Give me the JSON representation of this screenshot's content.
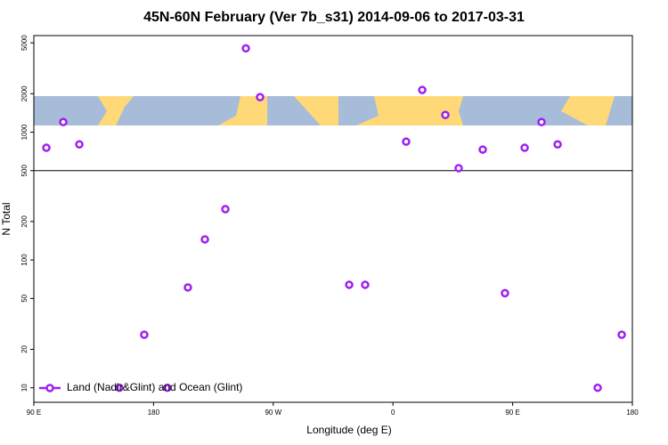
{
  "chart_data": {
    "type": "scatter",
    "title": "45N-60N February (Ver 7b_s31)   2014-09-06 to 2017-03-31",
    "x_label": "Longitude (deg E)",
    "y_label": "N Total",
    "log_y": true,
    "color": "#a020f0",
    "xlim": [
      90,
      540
    ],
    "xticks": [
      {
        "value": 90,
        "label": "90 E"
      },
      {
        "value": 180,
        "label": "180"
      },
      {
        "value": 270,
        "label": "90 W"
      },
      {
        "value": 360,
        "label": "0"
      },
      {
        "value": 450,
        "label": "90 E"
      },
      {
        "value": 540,
        "label": "180"
      }
    ],
    "ylim": [
      7.7,
      5700
    ],
    "yticks": [
      10,
      20,
      50,
      100,
      200,
      500,
      1000,
      2000,
      5000
    ],
    "hline": 500,
    "legend": "bottom-left",
    "series": [
      {
        "name": "Land (Nadir&Glint) and Ocean (Glint)",
        "color": "#a020f0",
        "x": [
          99.4,
          112.1,
          124.2,
          154.3,
          173.0,
          190.4,
          205.8,
          218.6,
          234.0,
          249.4,
          260.1,
          327.1,
          339.1,
          369.9,
          382.0,
          399.4,
          409.4,
          427.5,
          444.2,
          459.0,
          471.7,
          483.8,
          513.9,
          532.0
        ],
        "values": [
          755,
          1200,
          803,
          10,
          26,
          10,
          61,
          145,
          250,
          4530,
          1880,
          64,
          64,
          843,
          2140,
          1365,
          523,
          731,
          55,
          755,
          1200,
          803,
          10,
          26
        ]
      }
    ]
  }
}
